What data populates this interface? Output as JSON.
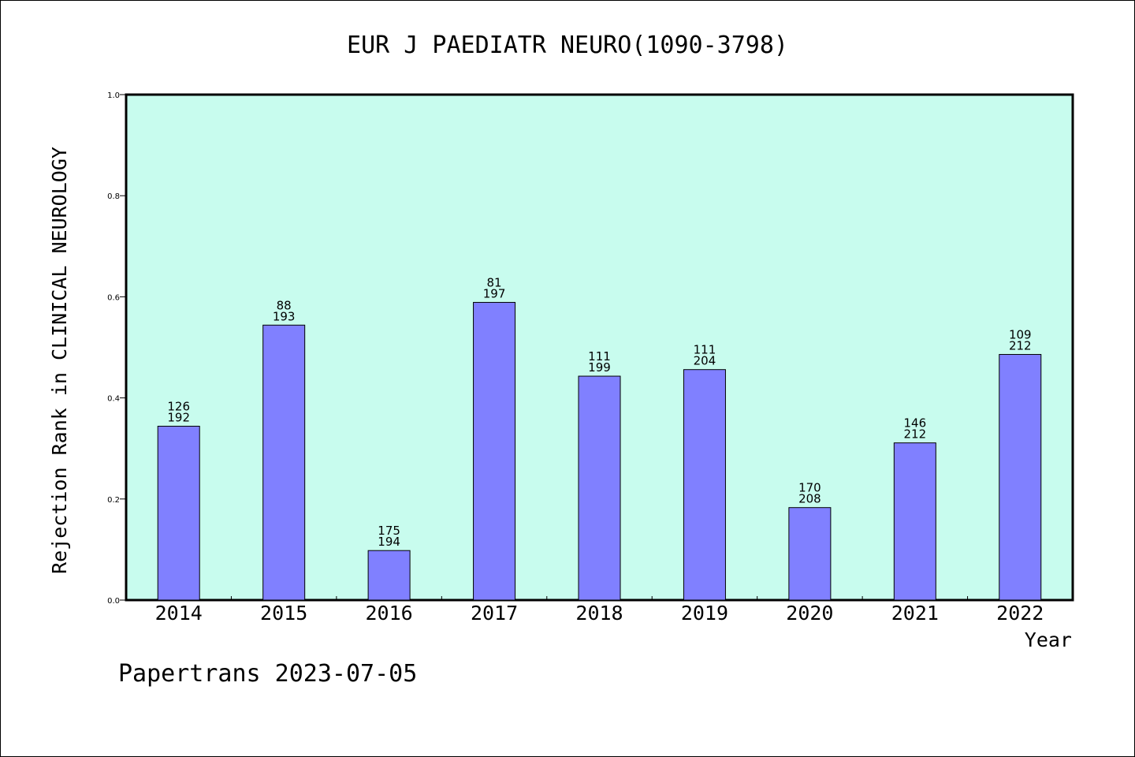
{
  "chart_data": {
    "type": "bar",
    "title": "EUR J PAEDIATR NEURO(1090-3798)",
    "xlabel": "Year",
    "ylabel": "Rejection Rank in CLINICAL NEUROLOGY",
    "categories": [
      "2014",
      "2015",
      "2016",
      "2017",
      "2018",
      "2019",
      "2020",
      "2021",
      "2022"
    ],
    "values": [
      0.344,
      0.544,
      0.098,
      0.589,
      0.443,
      0.456,
      0.183,
      0.311,
      0.486
    ],
    "rank": [
      "126",
      "88",
      "175",
      "81",
      "111",
      "111",
      "170",
      "146",
      "109"
    ],
    "total": [
      "192",
      "193",
      "194",
      "197",
      "199",
      "204",
      "208",
      "212",
      "212"
    ],
    "ylim": [
      0,
      1.0
    ],
    "yticks": [
      "0.0",
      "0.2",
      "0.4",
      "0.6",
      "0.8",
      "1.0"
    ],
    "grid": false,
    "colors": {
      "background": "#c8fcee",
      "bar": "#8080ff",
      "bar_edge": "#000000"
    }
  },
  "footer": "Papertrans 2023-07-05"
}
